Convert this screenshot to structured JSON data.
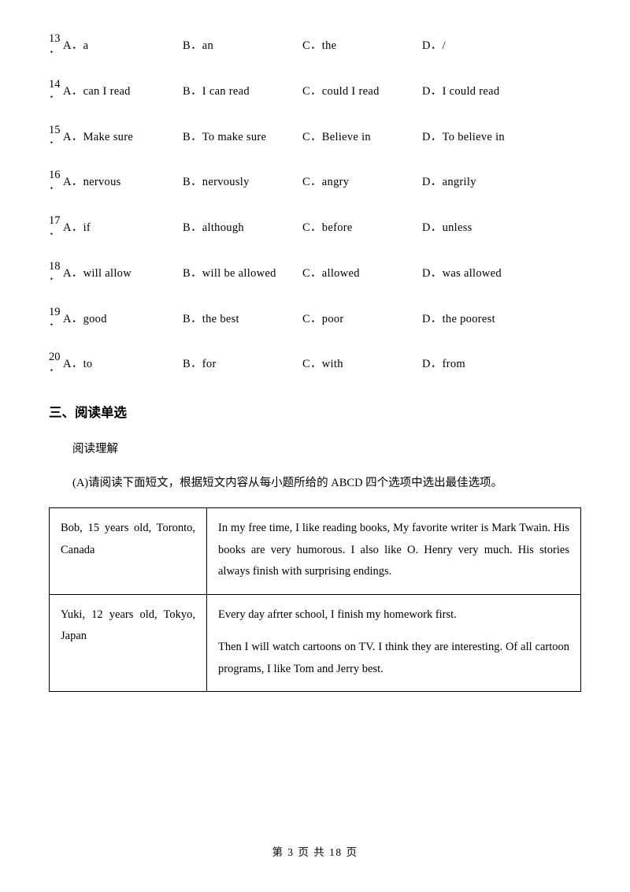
{
  "questions": [
    {
      "num": "13",
      "options": [
        "a",
        "an",
        "the",
        "/"
      ]
    },
    {
      "num": "14",
      "options": [
        "can I read",
        "I can read",
        "could I read",
        "I could read"
      ]
    },
    {
      "num": "15",
      "options": [
        "Make sure",
        "To make sure",
        "Believe in",
        "To believe in"
      ]
    },
    {
      "num": "16",
      "options": [
        "nervous",
        "nervously",
        "angry",
        "angrily"
      ]
    },
    {
      "num": "17",
      "options": [
        "if",
        "although",
        "before",
        "unless"
      ]
    },
    {
      "num": "18",
      "options": [
        "will allow",
        "will be allowed",
        "allowed",
        "was allowed"
      ]
    },
    {
      "num": "19",
      "options": [
        "good",
        "the best",
        "poor",
        "the poorest"
      ]
    },
    {
      "num": "20",
      "options": [
        "to",
        "for",
        "with",
        "from"
      ]
    }
  ],
  "letters": [
    "A．",
    "B．",
    "C．",
    "D．"
  ],
  "section_heading": "三、阅读单选",
  "reading_sub": "阅读理解",
  "reading_instr": "(A)请阅读下面短文，根据短文内容从每小题所给的 ABCD 四个选项中选出最佳选项。",
  "table_rows": [
    {
      "left": "Bob, 15 years old, Toronto, Canada",
      "right_paras": [
        "In my free time, I like reading books, My favorite writer is Mark Twain. His books are very humorous. I also like O. Henry very much. His stories always finish with surprising endings."
      ]
    },
    {
      "left": "Yuki, 12 years old, Tokyo, Japan",
      "right_paras": [
        "Every day afrter school, I finish my homework first.",
        "Then I will watch cartoons on TV. I think they are interesting. Of all cartoon programs, I like Tom and Jerry best."
      ]
    }
  ],
  "footer": "第 3 页 共 18 页"
}
